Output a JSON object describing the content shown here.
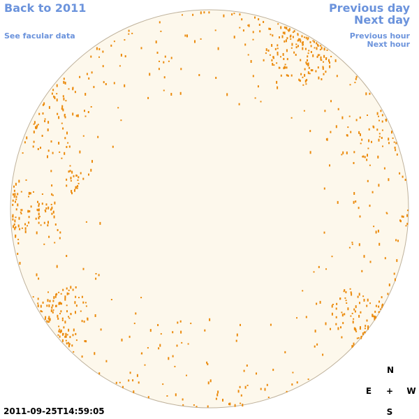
{
  "nav": {
    "back_year": "Back to 2011",
    "facular_data": "See facular data",
    "previous_day": "Previous day",
    "next_day": "Next day",
    "previous_hour": "Previous hour",
    "next_hour": "Next hour"
  },
  "timestamp": "2011-09-25T14:59:05",
  "compass": {
    "north": "N",
    "east": "E",
    "center": "+",
    "west": "W",
    "south": "S"
  }
}
